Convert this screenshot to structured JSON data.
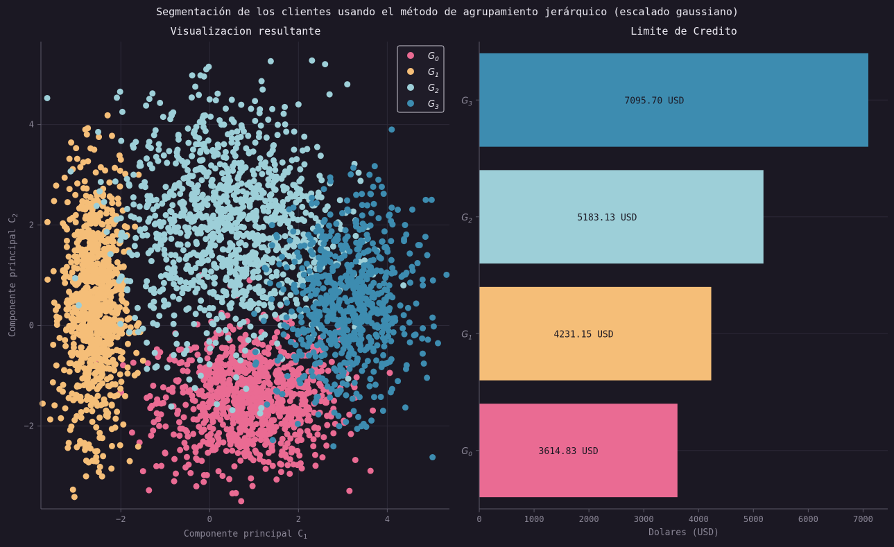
{
  "suptitle": "Segmentación de los clientes usando el método de agrupamiento jerárquico (escalado gaussiano)",
  "chart_data": [
    {
      "type": "scatter",
      "title": "Visualizacion resultante",
      "xlabel": "Componente principal C",
      "xlabel_sub": "1",
      "ylabel": "Componente principal C",
      "ylabel_sub": "2",
      "xlim": [
        -3.8,
        5.4
      ],
      "ylim": [
        -3.65,
        5.65
      ],
      "xticks": [
        -2,
        0,
        2,
        4
      ],
      "yticks": [
        -2,
        0,
        2,
        4
      ],
      "xtick_labels": [
        "−2",
        "0",
        "2",
        "4"
      ],
      "ytick_labels": [
        "−2",
        "0",
        "2",
        "4"
      ],
      "grid": true,
      "legend_position": "top-right",
      "series": [
        {
          "name": "G",
          "sub": "0",
          "color": "#ea6b93",
          "cluster": {
            "center": [
              0.9,
              -1.5
            ],
            "spread": [
              1.0,
              0.7
            ],
            "count": 900
          },
          "x": [
            -1.5,
            -1.2,
            -0.8,
            -0.3,
            0.2,
            0.8,
            1.4,
            2.0,
            2.5,
            2.2,
            1.6,
            0.9,
            0.0,
            -0.6,
            -1.3,
            0.4,
            1.1,
            2.8,
            -0.2,
            0.6
          ],
          "y": [
            -2.9,
            -2.8,
            -3.1,
            -3.2,
            -2.9,
            -2.6,
            -2.4,
            -1.8,
            -1.2,
            -0.6,
            0.4,
            0.9,
            -0.3,
            -0.9,
            -1.6,
            0.2,
            1.2,
            -1.5,
            1.0,
            0.6
          ]
        },
        {
          "name": "G",
          "sub": "1",
          "color": "#f5be78",
          "cluster": {
            "center": [
              -2.6,
              0.4
            ],
            "spread": [
              0.35,
              1.3
            ],
            "count": 900
          },
          "x": [
            -3.3,
            -3.2,
            -3.1,
            -2.8,
            -2.6,
            -2.4,
            -2.2,
            -2.0,
            -1.8,
            -1.6,
            -2.5,
            -2.9,
            -2.1,
            -1.5,
            -2.7
          ],
          "y": [
            1.1,
            0.5,
            -0.6,
            3.9,
            3.5,
            -2.6,
            -2.4,
            3.3,
            -2.7,
            3.0,
            2.2,
            -1.5,
            1.5,
            -0.7,
            0.0
          ]
        },
        {
          "name": "G",
          "sub": "2",
          "color": "#9dcfd8",
          "cluster": {
            "center": [
              0.4,
              2.0
            ],
            "spread": [
              1.2,
              1.2
            ],
            "count": 1100
          },
          "x": [
            -1.2,
            -0.7,
            0.0,
            0.5,
            1.0,
            1.5,
            2.0,
            2.6,
            2.7,
            3.1,
            1.9,
            -0.8,
            -0.2,
            0.8,
            1.6
          ],
          "y": [
            2.5,
            3.7,
            4.5,
            4.1,
            3.0,
            1.5,
            4.4,
            5.2,
            4.6,
            4.8,
            3.5,
            0.2,
            -1.0,
            -0.5,
            0.0
          ]
        },
        {
          "name": "G",
          "sub": "3",
          "color": "#3d8cb0",
          "cluster": {
            "center": [
              3.1,
              0.4
            ],
            "spread": [
              0.75,
              1.0
            ],
            "count": 700
          },
          "x": [
            1.5,
            2.0,
            2.4,
            2.9,
            3.3,
            3.8,
            4.1,
            4.4,
            4.7,
            5.0,
            3.6,
            2.6,
            2.2,
            4.9,
            3.0
          ],
          "y": [
            -1.3,
            -0.6,
            -1.5,
            -1.8,
            2.6,
            2.9,
            3.9,
            2.0,
            1.6,
            2.5,
            3.0,
            1.0,
            0.3,
            1.4,
            -1.0
          ]
        }
      ]
    },
    {
      "type": "bar",
      "orientation": "horizontal",
      "title": "Limite de Credito",
      "xlabel": "Dolares (USD)",
      "xlim": [
        0,
        7450
      ],
      "xticks": [
        0,
        1000,
        2000,
        3000,
        4000,
        5000,
        6000,
        7000
      ],
      "grid": true,
      "categories": [
        "G0",
        "G1",
        "G2",
        "G3"
      ],
      "category_base": [
        "G",
        "G",
        "G",
        "G"
      ],
      "category_sub": [
        "0",
        "1",
        "2",
        "3"
      ],
      "values": [
        3614.83,
        4231.15,
        5183.13,
        7095.7
      ],
      "value_labels": [
        "3614.83 USD",
        "4231.15 USD",
        "5183.13 USD",
        "7095.70 USD"
      ],
      "colors": [
        "#ea6b93",
        "#f5be78",
        "#9dcfd8",
        "#3d8cb0"
      ]
    }
  ]
}
